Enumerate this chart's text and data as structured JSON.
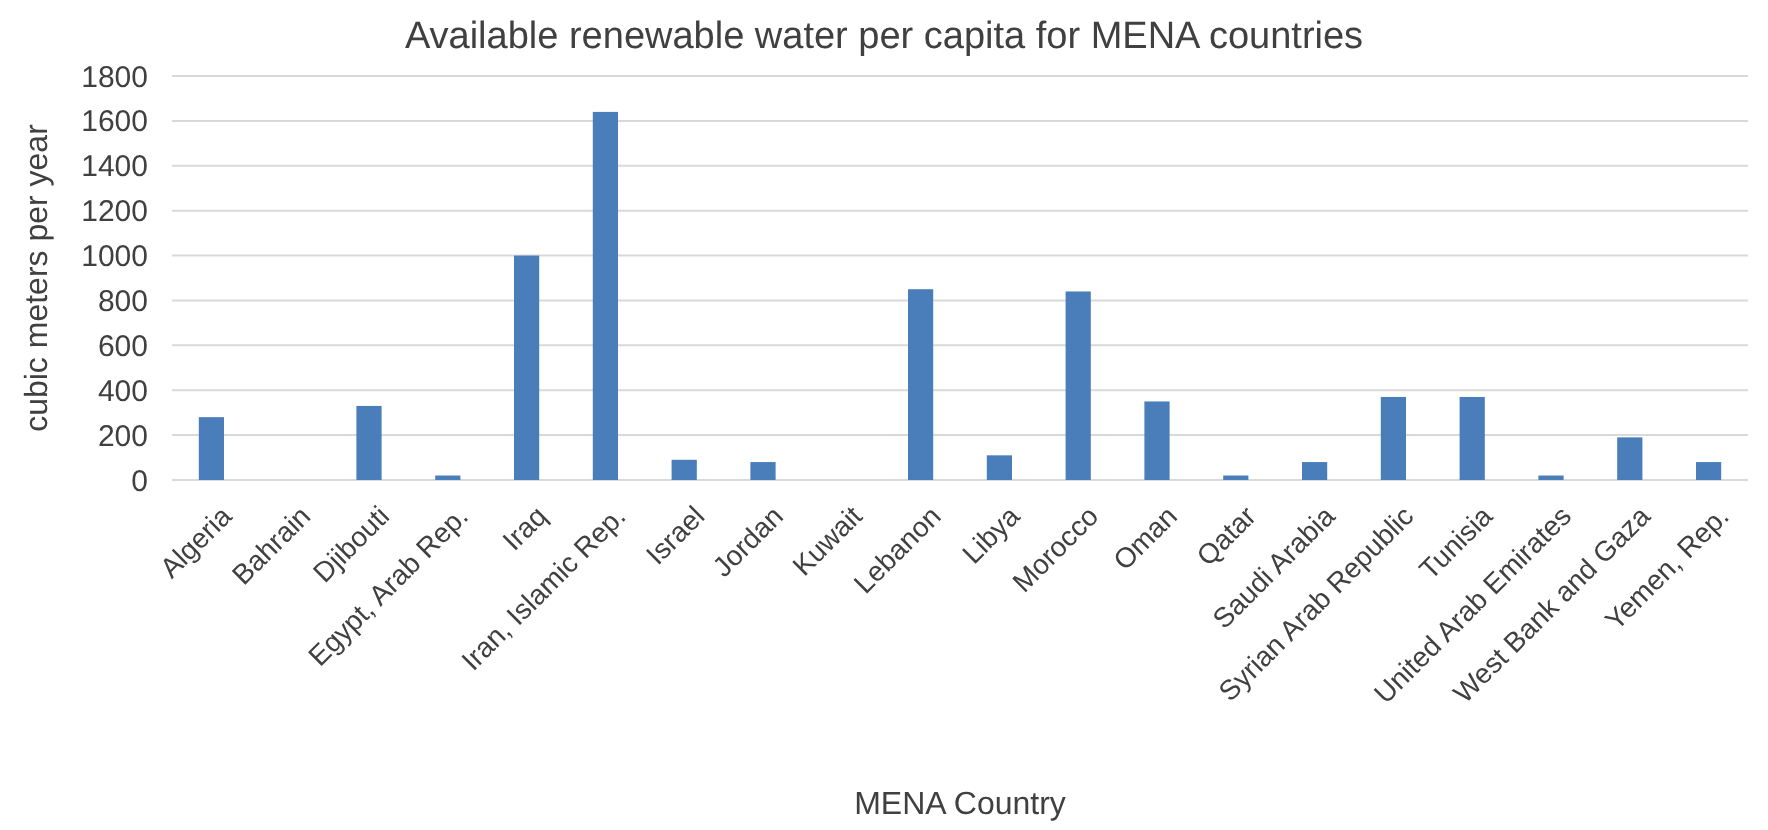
{
  "chart_data": {
    "type": "bar",
    "title": "Available renewable  water per capita for  MENA countries",
    "xlabel": "MENA Country",
    "ylabel": "cubic meters  per year",
    "categories": [
      "Algeria",
      "Bahrain",
      "Djibouti",
      "Egypt, Arab Rep.",
      "Iraq",
      "Iran, Islamic Rep.",
      "Israel",
      "Jordan",
      "Kuwait",
      "Lebanon",
      "Libya",
      "Morocco",
      "Oman",
      "Qatar",
      "Saudi Arabia",
      "Syrian Arab Republic",
      "Tunisia",
      "United Arab Emirates",
      "West Bank and Gaza",
      "Yemen, Rep."
    ],
    "values": [
      280,
      0,
      330,
      20,
      1000,
      1640,
      90,
      80,
      0,
      850,
      110,
      840,
      350,
      20,
      80,
      370,
      370,
      20,
      190,
      80
    ],
    "color": "#4a7ebb",
    "ylim": [
      0,
      1800
    ],
    "yticks": [
      0,
      200,
      400,
      600,
      800,
      1000,
      1200,
      1400,
      1600,
      1800
    ],
    "grid": "y"
  }
}
